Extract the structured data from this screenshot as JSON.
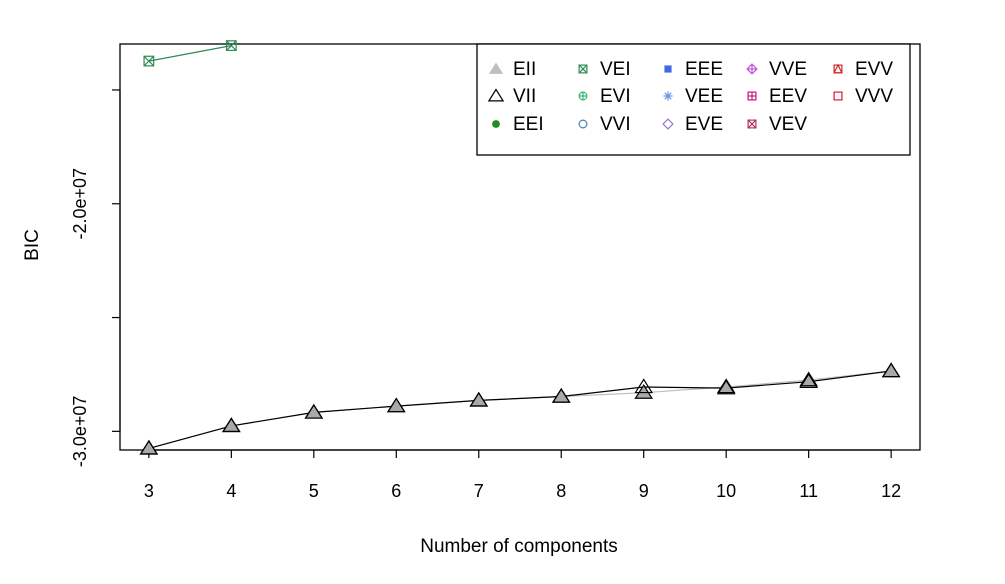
{
  "chart_data": {
    "type": "line",
    "xlabel": "Number of components",
    "ylabel": "BIC",
    "x_ticks": [
      3,
      4,
      5,
      6,
      7,
      8,
      9,
      10,
      11,
      12
    ],
    "x_tick_labels": [
      "3",
      "4",
      "5",
      "6",
      "7",
      "8",
      "9",
      "10",
      "11",
      "12"
    ],
    "y_ticks": [
      -30000000,
      -25000000,
      -20000000,
      -15000000
    ],
    "y_tick_labels": [
      "-3.0e+07",
      "",
      "-2.0e+07",
      ""
    ],
    "xlim": [
      2.65,
      12.35
    ],
    "ylim": [
      -30820000,
      -12980000
    ],
    "grid": false,
    "legend_position": "top-right",
    "legend": [
      {
        "label": "EII",
        "symbol": "filled-triangle",
        "color": "#bebebe"
      },
      {
        "label": "VII",
        "symbol": "open-triangle",
        "color": "#000000"
      },
      {
        "label": "EEI",
        "symbol": "filled-circle",
        "color": "#228b22"
      },
      {
        "label": "VEI",
        "symbol": "square-x",
        "color": "#2e8b57"
      },
      {
        "label": "EVI",
        "symbol": "circle-plus",
        "color": "#3cb371"
      },
      {
        "label": "VVI",
        "symbol": "open-circle",
        "color": "#4682b4"
      },
      {
        "label": "EEE",
        "symbol": "filled-square",
        "color": "#4169e1"
      },
      {
        "label": "VEE",
        "symbol": "asterisk",
        "color": "#6495ed"
      },
      {
        "label": "EVE",
        "symbol": "open-diamond",
        "color": "#9370db"
      },
      {
        "label": "VVE",
        "symbol": "diamond-plus",
        "color": "#ba55d3"
      },
      {
        "label": "EEV",
        "symbol": "square-plus",
        "color": "#c71585"
      },
      {
        "label": "VEV",
        "symbol": "square-x",
        "color": "#b03060"
      },
      {
        "label": "EVV",
        "symbol": "square-triangle",
        "color": "#cd2626"
      },
      {
        "label": "VVV",
        "symbol": "open-square",
        "color": "#dc143c"
      }
    ],
    "series": [
      {
        "name": "EII",
        "x": [
          3,
          4,
          5,
          6,
          7,
          8,
          9,
          10,
          11,
          12
        ],
        "values": [
          -30750000,
          -29760000,
          -29170000,
          -28890000,
          -28640000,
          -28470000,
          -28300000,
          -28050000,
          -27750000,
          -27350000
        ]
      },
      {
        "name": "VII",
        "x": [
          3,
          4,
          5,
          6,
          7,
          8,
          9,
          10,
          11,
          12
        ],
        "values": [
          -30750000,
          -29760000,
          -29170000,
          -28890000,
          -28640000,
          -28470000,
          -28050000,
          -28100000,
          -27820000,
          -27350000
        ]
      },
      {
        "name": "VEI",
        "x": [
          3,
          4
        ],
        "values": [
          -13730000,
          -13050000
        ]
      }
    ]
  }
}
